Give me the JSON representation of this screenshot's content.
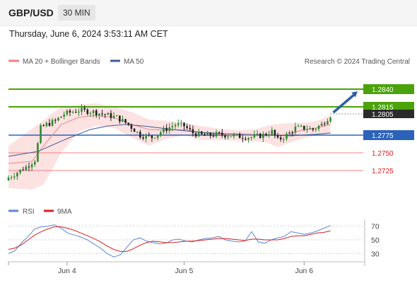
{
  "header": {
    "symbol": "GBP/USD",
    "timeframe": "30 MIN"
  },
  "datetime": "Thursday, June 6, 2024 3:53:11 AM CET",
  "legend": {
    "ma20": "MA 20 + Bollinger Bands",
    "ma50": "MA 50",
    "credit": "Research © 2024 Trading Central"
  },
  "rsi_legend": {
    "rsi": "RSI",
    "ma9": "9MA"
  },
  "colors": {
    "bull": "#2f8a2f",
    "bear": "#222222",
    "ma20": "#e8898a",
    "ma50": "#3c5e9c",
    "band": "#fde2e2",
    "resistance": "#4aa30a",
    "support": "#2a63b8",
    "support_minor": "#f08080",
    "rsi": "#5b87d8",
    "rsi_ma": "#d62020",
    "arrow": "#2f5fa6"
  },
  "chart_data": [
    {
      "type": "candlestick",
      "title": "GBP/USD",
      "ylim": [
        1.2694,
        1.287
      ],
      "x_ticks": [
        "Jun 4",
        "Jun 5",
        "Jun 6"
      ],
      "last_price": "1.2805",
      "levels": [
        {
          "label": "1.2840",
          "value": 1.284,
          "kind": "resistance"
        },
        {
          "label": "1.2815",
          "value": 1.2815,
          "kind": "resistance"
        },
        {
          "label": "1.2775",
          "value": 1.2775,
          "kind": "support"
        },
        {
          "label": "1.2750",
          "value": 1.275,
          "kind": "support-minor"
        },
        {
          "label": "1.2725",
          "value": 1.2725,
          "kind": "support-minor"
        }
      ],
      "close_path": [
        [
          0,
          1.2715
        ],
        [
          6,
          1.273
        ],
        [
          9,
          1.274
        ],
        [
          11,
          1.2785
        ],
        [
          13,
          1.279
        ],
        [
          16,
          1.2795
        ],
        [
          19,
          1.2805
        ],
        [
          24,
          1.281
        ],
        [
          29,
          1.2808
        ],
        [
          33,
          1.2804
        ],
        [
          37,
          1.28
        ],
        [
          41,
          1.279
        ],
        [
          45,
          1.2775
        ],
        [
          49,
          1.2772
        ],
        [
          53,
          1.2782
        ],
        [
          57,
          1.279
        ],
        [
          60,
          1.2788
        ],
        [
          63,
          1.2778
        ],
        [
          67,
          1.2774
        ],
        [
          71,
          1.2776
        ],
        [
          75,
          1.2775
        ],
        [
          79,
          1.2773
        ],
        [
          83,
          1.2772
        ],
        [
          87,
          1.2775
        ],
        [
          90,
          1.278
        ],
        [
          92,
          1.2768
        ],
        [
          95,
          1.2775
        ],
        [
          98,
          1.2785
        ],
        [
          101,
          1.2785
        ],
        [
          104,
          1.2783
        ],
        [
          107,
          1.279
        ],
        [
          110,
          1.2803
        ]
      ],
      "ma20_path": [
        [
          0,
          1.2735
        ],
        [
          8,
          1.2738
        ],
        [
          12,
          1.276
        ],
        [
          18,
          1.279
        ],
        [
          24,
          1.28
        ],
        [
          30,
          1.2803
        ],
        [
          36,
          1.28
        ],
        [
          42,
          1.279
        ],
        [
          48,
          1.2783
        ],
        [
          54,
          1.2782
        ],
        [
          60,
          1.2783
        ],
        [
          66,
          1.2778
        ],
        [
          72,
          1.2776
        ],
        [
          78,
          1.2775
        ],
        [
          84,
          1.2775
        ],
        [
          88,
          1.2776
        ],
        [
          92,
          1.2775
        ],
        [
          96,
          1.2776
        ],
        [
          100,
          1.2782
        ],
        [
          105,
          1.2785
        ],
        [
          110,
          1.279
        ]
      ],
      "ma50_path": [
        [
          0,
          1.2745
        ],
        [
          10,
          1.2752
        ],
        [
          20,
          1.277
        ],
        [
          28,
          1.2783
        ],
        [
          34,
          1.2788
        ],
        [
          40,
          1.279
        ],
        [
          46,
          1.2788
        ],
        [
          52,
          1.2785
        ],
        [
          58,
          1.2782
        ],
        [
          66,
          1.2779
        ],
        [
          74,
          1.2777
        ],
        [
          82,
          1.2776
        ],
        [
          90,
          1.2775
        ],
        [
          96,
          1.2774
        ],
        [
          104,
          1.2776
        ],
        [
          110,
          1.2778
        ]
      ],
      "band_upper": [
        [
          0,
          1.276
        ],
        [
          10,
          1.279
        ],
        [
          18,
          1.2815
        ],
        [
          24,
          1.2818
        ],
        [
          30,
          1.282
        ],
        [
          36,
          1.2815
        ],
        [
          42,
          1.2808
        ],
        [
          48,
          1.2797
        ],
        [
          54,
          1.2795
        ],
        [
          60,
          1.2792
        ],
        [
          66,
          1.2788
        ],
        [
          72,
          1.2784
        ],
        [
          78,
          1.2782
        ],
        [
          84,
          1.2783
        ],
        [
          90,
          1.279
        ],
        [
          96,
          1.2792
        ],
        [
          102,
          1.2793
        ],
        [
          106,
          1.2796
        ],
        [
          110,
          1.2803
        ]
      ],
      "band_lower": [
        [
          0,
          1.27
        ],
        [
          8,
          1.2698
        ],
        [
          12,
          1.2705
        ],
        [
          18,
          1.275
        ],
        [
          24,
          1.278
        ],
        [
          30,
          1.2788
        ],
        [
          36,
          1.2785
        ],
        [
          42,
          1.2772
        ],
        [
          48,
          1.276
        ],
        [
          54,
          1.277
        ],
        [
          60,
          1.2775
        ],
        [
          66,
          1.2768
        ],
        [
          72,
          1.2768
        ],
        [
          78,
          1.2767
        ],
        [
          84,
          1.2766
        ],
        [
          88,
          1.2765
        ],
        [
          92,
          1.2758
        ],
        [
          96,
          1.2764
        ],
        [
          102,
          1.2772
        ],
        [
          110,
          1.2777
        ]
      ],
      "forecast_arrow": {
        "from": [
          110,
          1.2805
        ],
        "to": [
          120,
          1.284
        ]
      }
    },
    {
      "type": "line",
      "title": "RSI",
      "ylim": [
        20,
        80
      ],
      "y_ticks": [
        30,
        50,
        70
      ],
      "series": [
        {
          "name": "RSI",
          "values": [
            30,
            34,
            46,
            55,
            66,
            69,
            70,
            72,
            67,
            60,
            57,
            54,
            50,
            44,
            38,
            30,
            25,
            28,
            39,
            50,
            53,
            48,
            46,
            44,
            45,
            50,
            51,
            48,
            47,
            50,
            52,
            53,
            55,
            50,
            48,
            47,
            48,
            62,
            47,
            45,
            50,
            53,
            55,
            62,
            60,
            58,
            60,
            63,
            67,
            71
          ]
        },
        {
          "name": "9MA",
          "values": [
            36,
            38,
            43,
            50,
            57,
            62,
            66,
            69,
            69,
            67,
            64,
            60,
            56,
            52,
            47,
            41,
            36,
            33,
            33,
            37,
            42,
            46,
            48,
            47,
            46,
            46,
            47,
            48,
            48,
            49,
            50,
            51,
            52,
            52,
            51,
            50,
            49,
            51,
            51,
            50,
            50,
            50,
            52,
            55,
            56,
            56,
            58,
            60,
            61,
            63
          ]
        }
      ]
    }
  ]
}
